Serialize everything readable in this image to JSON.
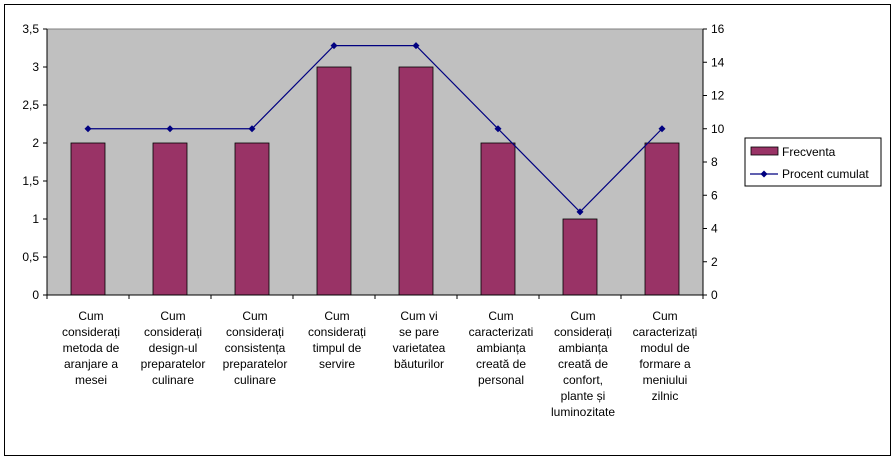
{
  "chart_data": {
    "type": "bar",
    "title": "",
    "categories": [
      [
        "Cum",
        "considerați",
        "metoda de",
        "aranjare a",
        "mesei"
      ],
      [
        "Cum",
        "considerați",
        "design-ul",
        "preparatelor",
        "culinare"
      ],
      [
        "Cum",
        "considerați",
        "consistența",
        "preparatelor",
        "culinare"
      ],
      [
        "Cum",
        "considerați",
        "timpul de",
        "servire"
      ],
      [
        "Cum vi",
        "se pare",
        "varietatea",
        "băuturilor"
      ],
      [
        "Cum",
        "caracterizati",
        "ambianța",
        "creată de",
        "personal"
      ],
      [
        "Cum",
        "considerați",
        "ambianța",
        "creată de",
        "confort,",
        "plante și",
        "luminozitate"
      ],
      [
        "Cum",
        "caracterizați",
        "modul de",
        "formare a",
        "meniului",
        "zilnic"
      ]
    ],
    "series": [
      {
        "name": "Frecventa",
        "type": "bar",
        "axis": "left",
        "color": "#993366",
        "values": [
          2,
          2,
          2,
          3,
          3,
          2,
          1,
          2
        ]
      },
      {
        "name": "Procent cumulat",
        "type": "line",
        "axis": "right",
        "color": "#000080",
        "values": [
          10,
          10,
          10,
          15,
          15,
          10,
          5,
          10
        ]
      }
    ],
    "y_left": {
      "min": 0,
      "max": 3.5,
      "step": 0.5,
      "tick_labels": [
        "0",
        "0,5",
        "1",
        "1,5",
        "2",
        "2,5",
        "3",
        "3,5"
      ]
    },
    "y_right": {
      "min": 0,
      "max": 16,
      "step": 2,
      "tick_labels": [
        "0",
        "2",
        "4",
        "6",
        "8",
        "10",
        "12",
        "14",
        "16"
      ]
    },
    "plot_background": "#c0c0c0",
    "grid": false,
    "legend_position": "right"
  }
}
